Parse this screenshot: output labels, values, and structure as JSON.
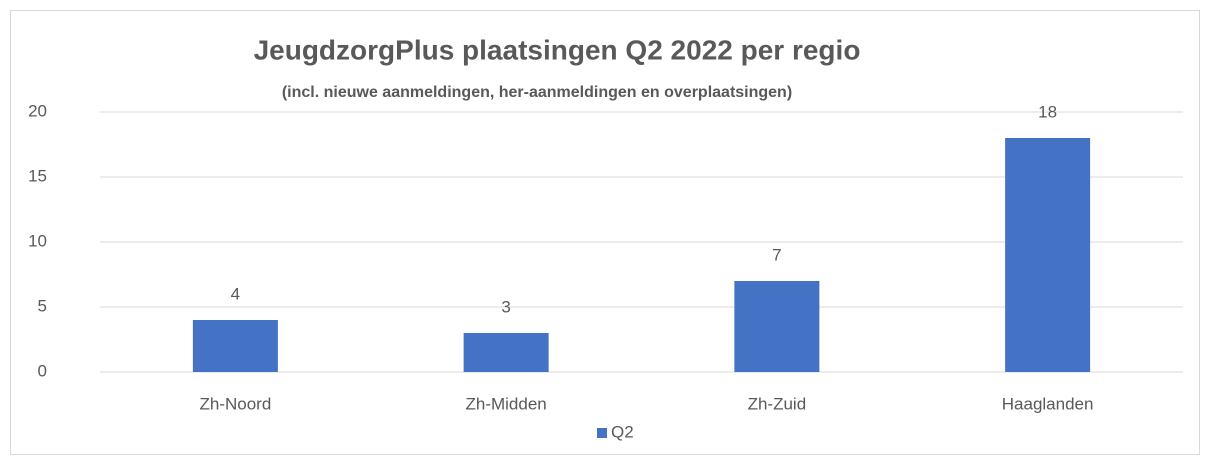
{
  "chart_data": {
    "type": "bar",
    "title": "JeugdzorgPlus plaatsingen Q2 2022 per regio",
    "subtitle": "(incl. nieuwe aanmeldingen, her-aanmeldingen en overplaatsingen)",
    "categories": [
      "Zh-Noord",
      "Zh-Midden",
      "Zh-Zuid",
      "Haaglanden"
    ],
    "series": [
      {
        "name": "Q2",
        "color": "#4472c4",
        "values": [
          4,
          3,
          7,
          18
        ]
      }
    ],
    "ylim": [
      0,
      20
    ],
    "yticks": [
      0,
      5,
      10,
      15,
      20
    ],
    "grid": true,
    "legend": "bottom"
  }
}
